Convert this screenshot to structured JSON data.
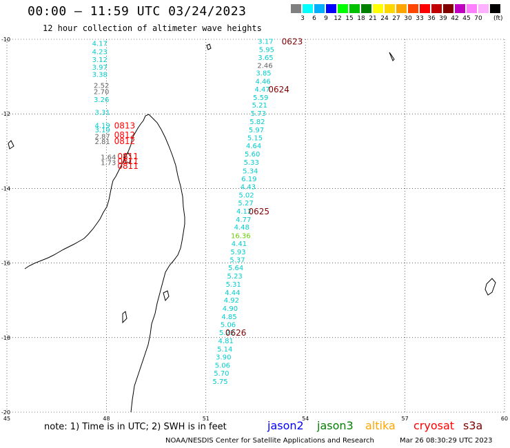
{
  "header": {
    "title": "00:00 – 11:59 UTC 03/24/2023",
    "subtitle": "12 hour collection of altimeter wave heights"
  },
  "colorbar": {
    "colors": [
      "#808080",
      "#00ffff",
      "#00b0ff",
      "#0000ff",
      "#00ff00",
      "#00c000",
      "#008000",
      "#ffff00",
      "#ffd700",
      "#ffa500",
      "#ff4500",
      "#ff0000",
      "#c00000",
      "#800000",
      "#c000c0",
      "#ff80ff",
      "#ffb0ff",
      "#000000"
    ],
    "labels": [
      "3",
      "6",
      "9",
      "12",
      "15",
      "18",
      "21",
      "24",
      "27",
      "30",
      "33",
      "36",
      "39",
      "42",
      "45",
      "70"
    ],
    "unit": "(ft)"
  },
  "axes": {
    "lon_ticks": [
      "45",
      "48",
      "51",
      "54",
      "57",
      "60"
    ],
    "lat_ticks": [
      "-10",
      "-12",
      "-14",
      "-16",
      "-18",
      "-20"
    ]
  },
  "colors": {
    "jason2": "#0000ff",
    "jason3": "#008000",
    "altika": "#ffa500",
    "cryosat": "#ff0000",
    "s3a": "#800000",
    "swh_cyan": "#00cccc",
    "swh_gray": "#606060",
    "swh_green": "#66cc00"
  },
  "observations": [
    {
      "v": "4.17",
      "lon": 47.8,
      "lat": -10.1,
      "c": "cyan"
    },
    {
      "v": "4.23",
      "lon": 47.8,
      "lat": -10.32,
      "c": "cyan"
    },
    {
      "v": "3.12",
      "lon": 47.8,
      "lat": -10.54,
      "c": "cyan"
    },
    {
      "v": "3.97",
      "lon": 47.8,
      "lat": -10.74,
      "c": "cyan"
    },
    {
      "v": "3.38",
      "lon": 47.8,
      "lat": -10.93,
      "c": "cyan"
    },
    {
      "v": "2.52",
      "lon": 47.85,
      "lat": -11.23,
      "c": "gray"
    },
    {
      "v": "2.70",
      "lon": 47.85,
      "lat": -11.4,
      "c": "gray"
    },
    {
      "v": "3.26",
      "lon": 47.85,
      "lat": -11.61,
      "c": "cyan"
    },
    {
      "v": "3.31",
      "lon": 47.88,
      "lat": -11.95,
      "c": "cyan"
    },
    {
      "v": "4.19",
      "lon": 47.88,
      "lat": -12.3,
      "c": "cyan"
    },
    {
      "v": "3.19",
      "lon": 47.88,
      "lat": -12.42,
      "c": "cyan"
    },
    {
      "v": "2.87",
      "lon": 47.88,
      "lat": -12.6,
      "c": "gray"
    },
    {
      "v": "2.81",
      "lon": 47.88,
      "lat": -12.74,
      "c": "gray"
    },
    {
      "v": "1.64",
      "lon": 48.06,
      "lat": -13.15,
      "c": "gray"
    },
    {
      "v": "1.73",
      "lon": 48.06,
      "lat": -13.3,
      "c": "gray"
    },
    {
      "v": "3.17",
      "lon": 52.8,
      "lat": -10.05,
      "c": "cyan"
    },
    {
      "v": "5.95",
      "lon": 52.83,
      "lat": -10.27,
      "c": "cyan"
    },
    {
      "v": "3.65",
      "lon": 52.8,
      "lat": -10.48,
      "c": "cyan"
    },
    {
      "v": "2.46",
      "lon": 52.78,
      "lat": -10.69,
      "c": "gray"
    },
    {
      "v": "3.85",
      "lon": 52.74,
      "lat": -10.9,
      "c": "cyan"
    },
    {
      "v": "4.46",
      "lon": 52.72,
      "lat": -11.12,
      "c": "cyan"
    },
    {
      "v": "4.47",
      "lon": 52.7,
      "lat": -11.33,
      "c": "cyan"
    },
    {
      "v": "5.59",
      "lon": 52.65,
      "lat": -11.55,
      "c": "cyan"
    },
    {
      "v": "5.21",
      "lon": 52.62,
      "lat": -11.76,
      "c": "cyan"
    },
    {
      "v": "5.73",
      "lon": 52.58,
      "lat": -11.98,
      "c": "cyan"
    },
    {
      "v": "5.82",
      "lon": 52.55,
      "lat": -12.2,
      "c": "cyan"
    },
    {
      "v": "5.97",
      "lon": 52.52,
      "lat": -12.42,
      "c": "cyan"
    },
    {
      "v": "5.15",
      "lon": 52.48,
      "lat": -12.63,
      "c": "cyan"
    },
    {
      "v": "4.64",
      "lon": 52.44,
      "lat": -12.85,
      "c": "cyan"
    },
    {
      "v": "5.60",
      "lon": 52.4,
      "lat": -13.07,
      "c": "cyan"
    },
    {
      "v": "5.33",
      "lon": 52.37,
      "lat": -13.29,
      "c": "cyan"
    },
    {
      "v": "5.34",
      "lon": 52.34,
      "lat": -13.52,
      "c": "cyan"
    },
    {
      "v": "6.19",
      "lon": 52.3,
      "lat": -13.73,
      "c": "cyan"
    },
    {
      "v": "4.43",
      "lon": 52.27,
      "lat": -13.95,
      "c": "cyan"
    },
    {
      "v": "5.02",
      "lon": 52.22,
      "lat": -14.17,
      "c": "cyan"
    },
    {
      "v": "5.27",
      "lon": 52.2,
      "lat": -14.38,
      "c": "cyan"
    },
    {
      "v": "4.12",
      "lon": 52.15,
      "lat": -14.6,
      "c": "cyan"
    },
    {
      "v": "4.77",
      "lon": 52.13,
      "lat": -14.82,
      "c": "cyan"
    },
    {
      "v": "4.48",
      "lon": 52.08,
      "lat": -15.03,
      "c": "cyan"
    },
    {
      "v": "16.36",
      "lon": 52.05,
      "lat": -15.26,
      "c": "green"
    },
    {
      "v": "4.41",
      "lon": 52.0,
      "lat": -15.47,
      "c": "cyan"
    },
    {
      "v": "5.93",
      "lon": 51.97,
      "lat": -15.69,
      "c": "cyan"
    },
    {
      "v": "5.37",
      "lon": 51.95,
      "lat": -15.91,
      "c": "cyan"
    },
    {
      "v": "5.64",
      "lon": 51.9,
      "lat": -16.12,
      "c": "cyan"
    },
    {
      "v": "5.23",
      "lon": 51.87,
      "lat": -16.34,
      "c": "cyan"
    },
    {
      "v": "5.31",
      "lon": 51.83,
      "lat": -16.56,
      "c": "cyan"
    },
    {
      "v": "4.44",
      "lon": 51.8,
      "lat": -16.78,
      "c": "cyan"
    },
    {
      "v": "4.92",
      "lon": 51.77,
      "lat": -16.99,
      "c": "cyan"
    },
    {
      "v": "4.90",
      "lon": 51.73,
      "lat": -17.21,
      "c": "cyan"
    },
    {
      "v": "4.85",
      "lon": 51.7,
      "lat": -17.43,
      "c": "cyan"
    },
    {
      "v": "5.06",
      "lon": 51.67,
      "lat": -17.64,
      "c": "cyan"
    },
    {
      "v": "5.22",
      "lon": 51.63,
      "lat": -17.86,
      "c": "cyan"
    },
    {
      "v": "4.81",
      "lon": 51.6,
      "lat": -18.08,
      "c": "cyan"
    },
    {
      "v": "5.14",
      "lon": 51.57,
      "lat": -18.3,
      "c": "cyan"
    },
    {
      "v": "3.90",
      "lon": 51.53,
      "lat": -18.51,
      "c": "cyan"
    },
    {
      "v": "5.06",
      "lon": 51.5,
      "lat": -18.73,
      "c": "cyan"
    },
    {
      "v": "5.70",
      "lon": 51.47,
      "lat": -18.95,
      "c": "cyan"
    },
    {
      "v": "5.75",
      "lon": 51.43,
      "lat": -19.17,
      "c": "cyan"
    }
  ],
  "pass_labels": [
    {
      "t": "0623",
      "lon": 53.6,
      "lat": -10.05,
      "c": "s3a"
    },
    {
      "t": "0624",
      "lon": 53.2,
      "lat": -11.33,
      "c": "s3a"
    },
    {
      "t": "0625",
      "lon": 52.6,
      "lat": -14.6,
      "c": "s3a"
    },
    {
      "t": "0626",
      "lon": 51.9,
      "lat": -17.86,
      "c": "s3a"
    },
    {
      "t": "0813",
      "lon": 48.55,
      "lat": -12.3,
      "c": "cryosat"
    },
    {
      "t": "0812",
      "lon": 48.55,
      "lat": -12.55,
      "c": "cryosat"
    },
    {
      "t": "0812",
      "lon": 48.55,
      "lat": -12.72,
      "c": "cryosat"
    },
    {
      "t": "0811",
      "lon": 48.65,
      "lat": -13.12,
      "c": "cryosat"
    },
    {
      "t": "0811",
      "lon": 48.65,
      "lat": -13.25,
      "c": "cryosat"
    },
    {
      "t": "0811",
      "lon": 48.65,
      "lat": -13.38,
      "c": "cryosat"
    }
  ],
  "footer": {
    "note": "note:  1) Time is in UTC;  2) SWH is in feet",
    "legend": {
      "jason2": "jason2",
      "jason3": "jason3",
      "altika": "altika",
      "cryosat": "cryosat",
      "s3a": "s3a"
    },
    "credit": "NOAA/NESDIS Center for Satellite Applications and Research",
    "timestamp": "Mar 26 08:30:29 UTC 2023"
  }
}
